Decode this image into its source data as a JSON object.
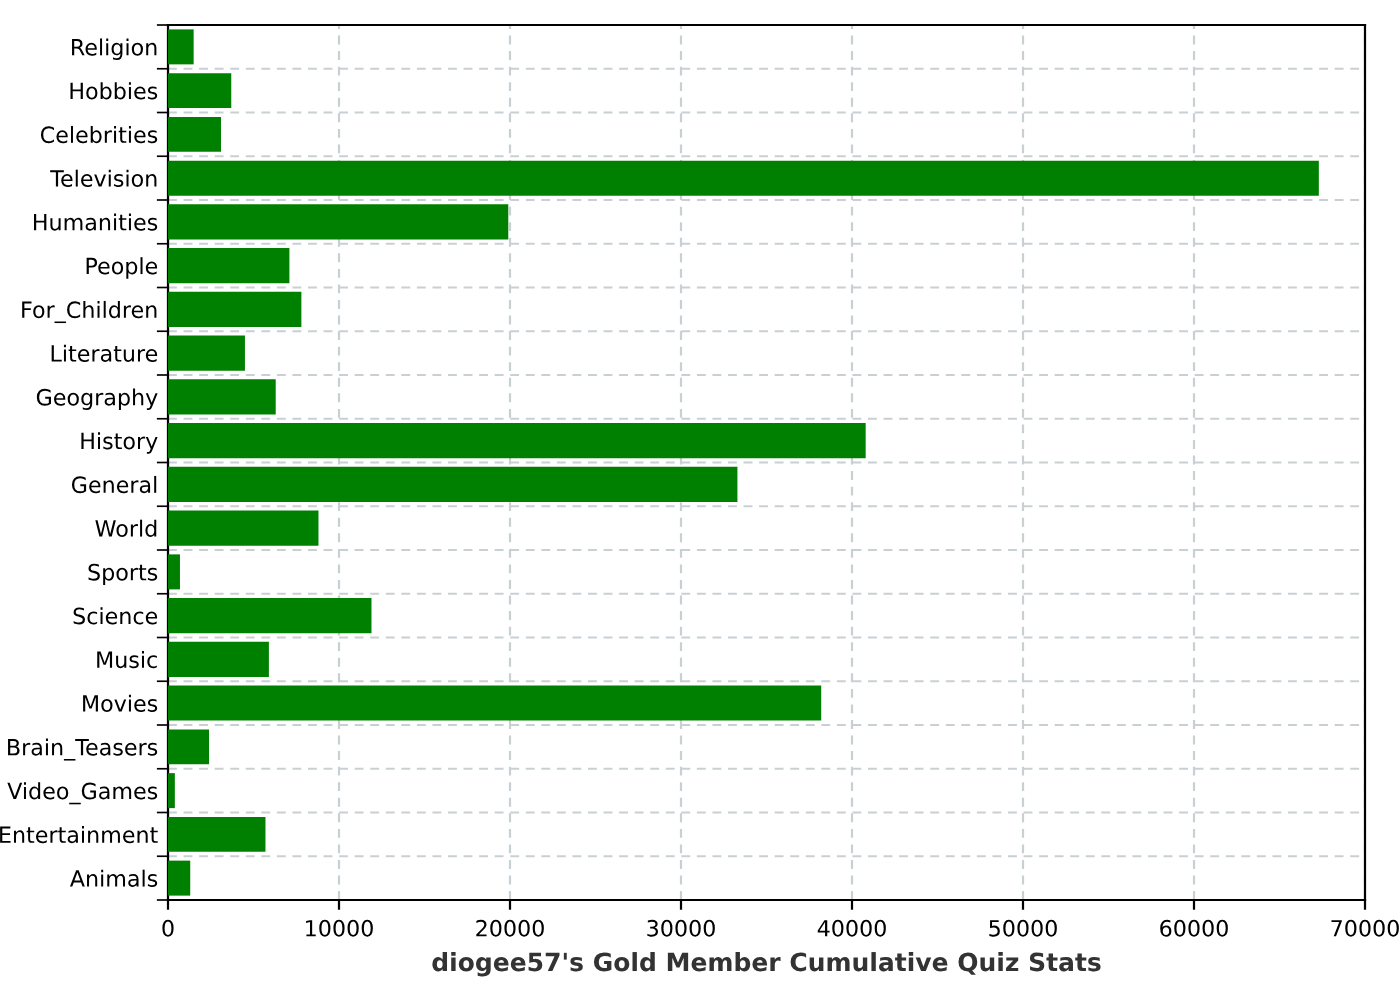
{
  "chart_data": {
    "type": "bar",
    "orientation": "horizontal",
    "xlabel": "diogee57's Gold Member Cumulative Quiz Stats",
    "categories": [
      "Religion",
      "Hobbies",
      "Celebrities",
      "Television",
      "Humanities",
      "People",
      "For_Children",
      "Literature",
      "Geography",
      "History",
      "General",
      "World",
      "Sports",
      "Science",
      "Music",
      "Movies",
      "Brain_Teasers",
      "Video_Games",
      "Entertainment",
      "Animals"
    ],
    "values": [
      1500,
      3700,
      3100,
      67300,
      19900,
      7100,
      7800,
      4500,
      6300,
      40800,
      33300,
      8800,
      700,
      11900,
      5900,
      38200,
      2400,
      400,
      5700,
      1300
    ],
    "color": "#008000",
    "xlim": [
      0,
      70000
    ],
    "xticks": [
      0,
      10000,
      20000,
      30000,
      40000,
      50000,
      60000,
      70000
    ],
    "grid": true,
    "legend": false
  }
}
